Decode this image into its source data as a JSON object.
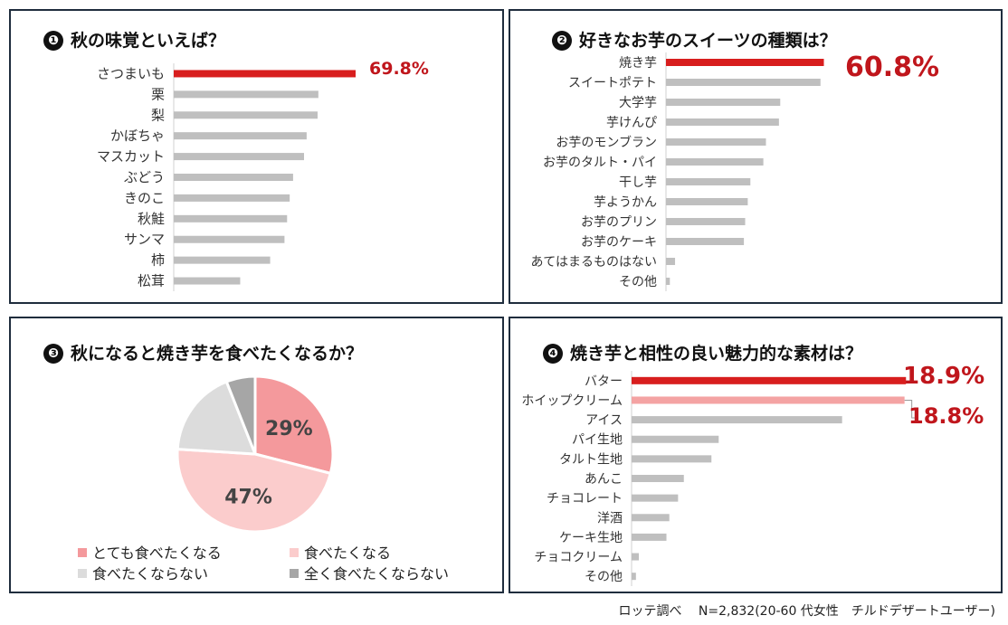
{
  "colors": {
    "highlight": "#d81e1e",
    "highlight_light": "#f4a3a3",
    "bar_gray": "#bfbfbf",
    "label_red": "#c0161c",
    "pie": [
      "#f4999c",
      "#fbcccc",
      "#dcdcdc",
      "#a6a6a6"
    ]
  },
  "footer": "ロッテ調べ　 N=2,832(20-60 代女性　チルドデザートユーザー)",
  "chart_data": [
    {
      "type": "bar",
      "number": "❶",
      "title": "秋の味覚といえば？",
      "categories": [
        "さつまいも",
        "栗",
        "梨",
        "かぼちゃ",
        "マスカット",
        "ぶどう",
        "きのこ",
        "秋鮭",
        "サンマ",
        "柿",
        "松茸"
      ],
      "values": [
        69.8,
        55.5,
        55.2,
        51.0,
        50.0,
        45.8,
        44.5,
        43.5,
        42.5,
        37.0,
        25.5
      ],
      "highlight": [
        0
      ],
      "value_labels": [
        {
          "index": 0,
          "text": "69.8%"
        }
      ],
      "xlim": [
        0,
        100
      ]
    },
    {
      "type": "bar",
      "number": "❷",
      "title": "好きなお芋のスイーツの種類は？",
      "categories": [
        "焼き芋",
        "スイートポテト",
        "大学芋",
        "芋けんぴ",
        "お芋のモンブラン",
        "お芋のタルト・パイ",
        "干し芋",
        "芋ようかん",
        "お芋のプリン",
        "お芋のケーキ",
        "あてはまるものはない",
        "その他"
      ],
      "values": [
        60.8,
        59.5,
        44.0,
        43.5,
        38.5,
        37.5,
        32.5,
        31.5,
        30.5,
        30.0,
        3.5,
        1.5
      ],
      "highlight": [
        0
      ],
      "value_labels": [
        {
          "index": 0,
          "text": "60.8%"
        }
      ],
      "xlim": [
        0,
        100
      ]
    },
    {
      "type": "pie",
      "number": "❸",
      "title": "秋になると焼き芋を食べたくなるか？",
      "labels": [
        "とても食べたくなる",
        "食べたくなる",
        "食べたくならない",
        "全く食べたくならない"
      ],
      "values": [
        29,
        47,
        18,
        6
      ],
      "slice_labels": [
        "29%",
        "47%",
        "",
        ""
      ]
    },
    {
      "type": "bar",
      "number": "❹",
      "title": "焼き芋と相性の良い魅力的な素材は？",
      "categories": [
        "バター",
        "ホイップクリーム",
        "アイス",
        "パイ生地",
        "タルト生地",
        "あんこ",
        "チョコレート",
        "洋酒",
        "ケーキ生地",
        "チョコクリーム",
        "その他"
      ],
      "values": [
        18.9,
        18.8,
        14.5,
        6.0,
        5.5,
        3.6,
        3.2,
        2.6,
        2.4,
        0.5,
        0.3
      ],
      "highlight": [
        0
      ],
      "highlight_light": [
        1
      ],
      "value_labels": [
        {
          "index": 0,
          "text": "18.9%"
        },
        {
          "index": 1,
          "text": "18.8%"
        }
      ],
      "xlim": [
        0,
        22
      ]
    }
  ]
}
